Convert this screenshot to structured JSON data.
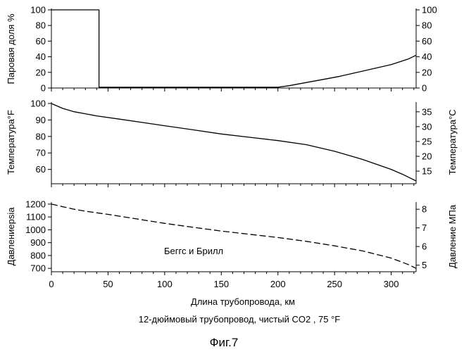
{
  "figure": {
    "subcaption": "12-дюймовый трубопровод, чистый CO2 , 75 °F",
    "label": "Фиг.7"
  },
  "chart_data": [
    {
      "id": "vapor",
      "type": "line",
      "x": [
        0,
        42,
        42,
        200,
        210,
        225,
        240,
        255,
        270,
        285,
        300,
        315,
        322
      ],
      "y": [
        100,
        100,
        1,
        1,
        3,
        7,
        11,
        15,
        20,
        25,
        30,
        37,
        42
      ],
      "xlim": [
        0,
        322
      ],
      "ylim": [
        0,
        100
      ],
      "ylim_right": [
        0,
        100
      ],
      "yticks": [
        0,
        20,
        40,
        60,
        80,
        100
      ],
      "yticks_right": [
        0,
        20,
        40,
        60,
        80,
        100
      ],
      "ylabel": "Паровая доля %",
      "ylabel_right": "",
      "line_style": "solid",
      "grid": false
    },
    {
      "id": "temperature",
      "type": "line",
      "x": [
        0,
        5,
        10,
        20,
        40,
        60,
        80,
        100,
        125,
        150,
        175,
        200,
        225,
        250,
        275,
        300,
        310,
        322
      ],
      "y": [
        100,
        98.5,
        97,
        95,
        92.5,
        90.5,
        88.5,
        86.5,
        84,
        81.5,
        79.5,
        77.5,
        75,
        71,
        66,
        60,
        57,
        53
      ],
      "xlim": [
        0,
        322
      ],
      "ylim": [
        53,
        100
      ],
      "ylim_right": [
        11.7,
        37.8
      ],
      "yticks": [
        60,
        70,
        80,
        90,
        100
      ],
      "yticks_right": [
        15,
        20,
        25,
        30,
        35
      ],
      "ylabel": "Температура°F",
      "ylabel_right": "Температура°C",
      "line_style": "solid",
      "grid": false
    },
    {
      "id": "pressure",
      "type": "line",
      "x": [
        0,
        10,
        20,
        30,
        50,
        75,
        100,
        125,
        150,
        175,
        200,
        225,
        250,
        275,
        300,
        315,
        322
      ],
      "y": [
        1200,
        1180,
        1160,
        1145,
        1120,
        1085,
        1050,
        1020,
        990,
        965,
        940,
        910,
        875,
        835,
        780,
        730,
        700
      ],
      "xlim": [
        0,
        322
      ],
      "ylim": [
        690,
        1205
      ],
      "ylim_right": [
        4.76,
        8.31
      ],
      "yticks": [
        700,
        800,
        900,
        1000,
        1100,
        1200
      ],
      "yticks_right": [
        5,
        6,
        7,
        8
      ],
      "ylabel": "Давлениеpsia",
      "ylabel_right": "Давление МПа",
      "line_style": "dashed",
      "annotation": "Беггс и Брилл",
      "xticks": [
        0,
        50,
        100,
        150,
        200,
        250,
        300
      ],
      "xlabel": "Длина трубопровода, км",
      "grid": false
    }
  ]
}
